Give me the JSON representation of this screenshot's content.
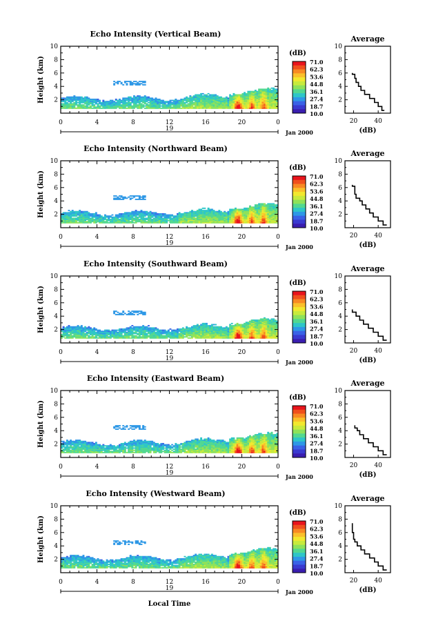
{
  "colorbar": {
    "unit": "(dB)",
    "labels": [
      "71.0",
      "62.3",
      "53.6",
      "44.8",
      "36.1",
      "27.4",
      "18.7",
      "10.0"
    ],
    "colors": [
      "#e8141c",
      "#f0501c",
      "#f88a22",
      "#fac02a",
      "#f2e82e",
      "#c8ea3c",
      "#8ee25a",
      "#52d890",
      "#2ec6c8",
      "#2e98e6",
      "#3a62e6",
      "#3a3ad0",
      "#3a1eb0"
    ]
  },
  "common": {
    "ylabel": "Height (km)",
    "date_label": "Jan 2000",
    "day_label": "19",
    "xlabel": "Local Time",
    "avg_title": "Average",
    "avg_xlabel": "(dB)",
    "x_ticks": [
      "0",
      "4",
      "8",
      "12",
      "16",
      "20",
      "0"
    ],
    "y_ticks": [
      "2",
      "4",
      "6",
      "8",
      "10"
    ]
  },
  "chart_data": [
    {
      "type": "heatmap",
      "title": "Echo Intensity (Vertical Beam)",
      "xlim": [
        0,
        24
      ],
      "ylim": [
        0,
        10
      ],
      "profile": {
        "x_ticks": [
          "20",
          "40"
        ],
        "xlim": [
          13,
          50
        ],
        "points": [
          [
            45,
            0.4
          ],
          [
            43,
            1.0
          ],
          [
            40,
            1.6
          ],
          [
            37,
            2.2
          ],
          [
            33,
            2.8
          ],
          [
            29,
            3.4
          ],
          [
            26,
            4.0
          ],
          [
            24,
            4.6
          ],
          [
            22,
            5.2
          ],
          [
            21,
            5.8
          ],
          [
            19,
            6.0
          ]
        ]
      }
    },
    {
      "type": "heatmap",
      "title": "Echo Intensity (Northward Beam)",
      "xlim": [
        0,
        24
      ],
      "ylim": [
        0,
        10
      ],
      "profile": {
        "x_ticks": [
          "20",
          "40"
        ],
        "xlim": [
          13,
          50
        ],
        "points": [
          [
            47,
            0.4
          ],
          [
            44,
            1.0
          ],
          [
            40,
            1.6
          ],
          [
            36,
            2.2
          ],
          [
            33,
            2.8
          ],
          [
            30,
            3.4
          ],
          [
            27,
            4.0
          ],
          [
            25,
            4.4
          ],
          [
            22,
            5.0
          ],
          [
            21,
            6.2
          ],
          [
            19,
            6.4
          ]
        ]
      }
    },
    {
      "type": "heatmap",
      "title": "Echo Intensity (Southward Beam)",
      "xlim": [
        0,
        24
      ],
      "ylim": [
        0,
        10
      ],
      "profile": {
        "x_ticks": [
          "20",
          "40"
        ],
        "xlim": [
          13,
          50
        ],
        "points": [
          [
            47,
            0.4
          ],
          [
            44,
            1.0
          ],
          [
            40,
            1.6
          ],
          [
            36,
            2.2
          ],
          [
            32,
            2.8
          ],
          [
            28,
            3.4
          ],
          [
            25,
            4.0
          ],
          [
            22,
            4.6
          ],
          [
            19,
            5.0
          ]
        ]
      }
    },
    {
      "type": "heatmap",
      "title": "Echo Intensity (Eastward Beam)",
      "xlim": [
        0,
        24
      ],
      "ylim": [
        0,
        10
      ],
      "profile": {
        "x_ticks": [
          "20",
          "40"
        ],
        "xlim": [
          13,
          50
        ],
        "points": [
          [
            47,
            0.4
          ],
          [
            44,
            1.0
          ],
          [
            40,
            1.6
          ],
          [
            36,
            2.2
          ],
          [
            32,
            2.8
          ],
          [
            28,
            3.4
          ],
          [
            25,
            4.0
          ],
          [
            23,
            4.4
          ],
          [
            21,
            4.8
          ]
        ]
      }
    },
    {
      "type": "heatmap",
      "title": "Echo Intensity (Westward Beam)",
      "xlim": [
        0,
        24
      ],
      "ylim": [
        0,
        10
      ],
      "profile": {
        "x_ticks": [
          "20",
          "40"
        ],
        "xlim": [
          13,
          50
        ],
        "points": [
          [
            47,
            0.4
          ],
          [
            44,
            1.0
          ],
          [
            40,
            1.6
          ],
          [
            37,
            2.2
          ],
          [
            33,
            2.8
          ],
          [
            29,
            3.4
          ],
          [
            26,
            4.0
          ],
          [
            23,
            4.6
          ],
          [
            21,
            5.0
          ],
          [
            20,
            6.0
          ],
          [
            19,
            7.4
          ]
        ]
      }
    }
  ]
}
